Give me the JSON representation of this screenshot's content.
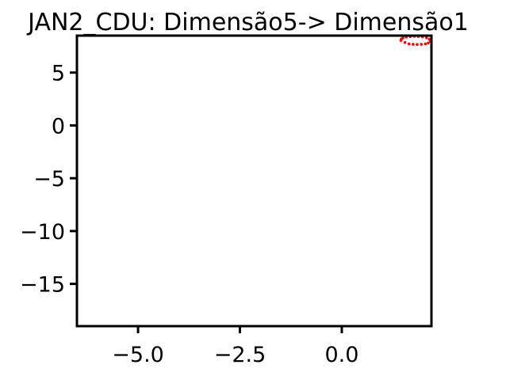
{
  "chart_data": {
    "type": "scatter",
    "title": "JAN2_CDU: Dimensão5-> Dimensão1",
    "xlabel": "",
    "ylabel": "",
    "xlim": [
      -6.5,
      2.2
    ],
    "ylim": [
      -19,
      8.5
    ],
    "xticks": [
      -5.0,
      -2.5,
      0.0
    ],
    "xtick_labels": [
      "−5.0",
      "−2.5",
      "0.0"
    ],
    "yticks": [
      5,
      0,
      -5,
      -10,
      -15
    ],
    "ytick_labels": [
      "5",
      "0",
      "−5",
      "−10",
      "−15"
    ],
    "grid": false,
    "point_color": "#ff0000",
    "series": [
      {
        "x": [
          1.45,
          1.55,
          1.65,
          1.75,
          1.85,
          1.95,
          2.05,
          2.12,
          2.18,
          2.15,
          2.08,
          1.98,
          1.88,
          1.78,
          1.68,
          1.58,
          1.5,
          1.46
        ],
        "y": [
          8.05,
          7.85,
          7.72,
          7.68,
          7.66,
          7.68,
          7.72,
          7.8,
          7.95,
          8.15,
          8.3,
          8.38,
          8.42,
          8.43,
          8.41,
          8.36,
          8.28,
          8.18
        ]
      }
    ]
  }
}
